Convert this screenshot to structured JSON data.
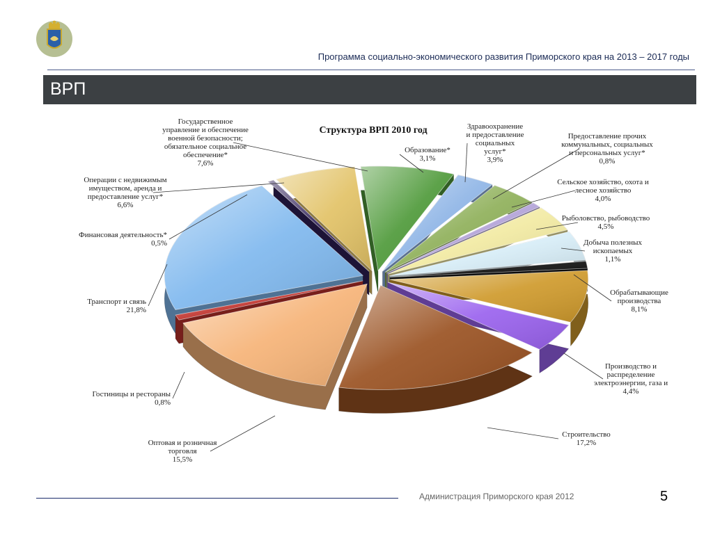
{
  "header": {
    "program_title": "Программа социально-экономического развития Приморского края на 2013 – 2017 годы",
    "banner_title": "ВРП"
  },
  "footer": {
    "organization": "Администрация Приморского края  2012",
    "page_number": "5"
  },
  "icons": {
    "emblem": "coat-of-arms-icon"
  },
  "chart_data": {
    "type": "pie",
    "style": "3d-exploded",
    "title": "Структура ВРП  2010 год",
    "slices": [
      {
        "lines": [
          "Государственное",
          "управление и обеспечение",
          "военной безопасности;",
          "обязательное социальное",
          "обеспечение*"
        ],
        "value_label": "7,6%",
        "value": 7.6,
        "color": "#4f9a3a"
      },
      {
        "lines": [
          "Образование*"
        ],
        "value_label": "3,1%",
        "value": 3.1,
        "color": "#8fb5e6"
      },
      {
        "lines": [
          "Здравоохранение",
          "и предоставление",
          "социальных",
          "услуг*"
        ],
        "value_label": "3,9%",
        "value": 3.9,
        "color": "#8fb05a"
      },
      {
        "lines": [
          "Предоставление прочих",
          "коммунальных, социальных",
          "и персональных услуг*"
        ],
        "value_label": "0,8%",
        "value": 0.8,
        "color": "#b3a3d8"
      },
      {
        "lines": [
          "Сельское хозяйство, охота и",
          "лесное хозяйство"
        ],
        "value_label": "4,0%",
        "value": 4.0,
        "color": "#f2eaa2"
      },
      {
        "lines": [
          "Рыболовство, рыбоводство"
        ],
        "value_label": "4,5%",
        "value": 4.5,
        "color": "#d7edf7"
      },
      {
        "lines": [
          "Добыча полезных",
          "ископаемых"
        ],
        "value_label": "1,1%",
        "value": 1.1,
        "color": "#111111"
      },
      {
        "lines": [
          "Обрабатывающие",
          "производства"
        ],
        "value_label": "8,1%",
        "value": 8.1,
        "color": "#cf9a2c"
      },
      {
        "lines": [
          "Производство и",
          "распределение",
          "электроэнергии, газа и"
        ],
        "value_label": "4,4%",
        "value": 4.4,
        "color": "#9a62ee"
      },
      {
        "lines": [
          "Строительство"
        ],
        "value_label": "17,2%",
        "value": 17.2,
        "color": "#9a5222"
      },
      {
        "lines": [
          "Оптовая и розничная",
          "торговля"
        ],
        "value_label": "15,5%",
        "value": 15.5,
        "color": "#f6b377"
      },
      {
        "lines": [
          "Гостиницы и рестораны"
        ],
        "value_label": "0,8%",
        "value": 0.8,
        "color": "#c0322c"
      },
      {
        "lines": [
          "Транспорт и связь"
        ],
        "value_label": "21,8%",
        "value": 21.8,
        "color": "#7fb8ee"
      },
      {
        "lines": [
          "Финансовая деятельность*"
        ],
        "value_label": "0,5%",
        "value": 0.5,
        "color": "#2e1f57"
      },
      {
        "lines": [
          "Операции с недвижимым",
          "имуществом, аренда и",
          "предоставление услуг*"
        ],
        "value_label": "6,6%",
        "value": 6.6,
        "color": "#e2c266"
      }
    ]
  }
}
